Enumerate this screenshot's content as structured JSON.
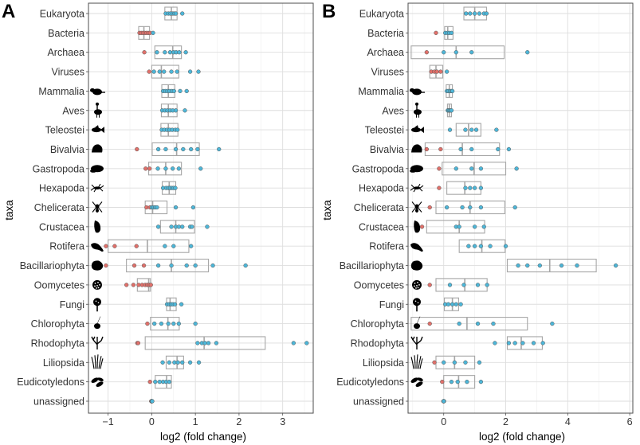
{
  "chart_data": [
    {
      "panel": "A",
      "type": "boxplot",
      "xlabel": "log2 (fold change)",
      "ylabel": "taxa",
      "xlim": [
        -1.45,
        3.7
      ],
      "xticks": [
        -1,
        0,
        1,
        2,
        3
      ],
      "xtick_labels": [
        "−1",
        "0",
        "1",
        "2",
        "3"
      ],
      "boxes": [
        {
          "taxon": "Eukaryota",
          "q1": 0.3,
          "median": 0.45,
          "q3": 0.58,
          "points": [
            0.32,
            0.38,
            0.43,
            0.48,
            0.52,
            0.55,
            0.7
          ]
        },
        {
          "taxon": "Bacteria",
          "q1": -0.3,
          "median": -0.18,
          "q3": -0.05,
          "points": [
            -0.28,
            -0.24,
            -0.2,
            -0.16,
            -0.12,
            -0.08,
            -0.04,
            0.03
          ]
        },
        {
          "taxon": "Archaea",
          "q1": 0.07,
          "median": 0.48,
          "q3": 0.68,
          "points": [
            -0.17,
            0.12,
            0.3,
            0.42,
            0.5,
            0.56,
            0.63,
            0.78
          ]
        },
        {
          "taxon": "Viruses",
          "q1": 0.0,
          "median": 0.22,
          "q3": 0.62,
          "points": [
            -0.06,
            0.05,
            0.18,
            0.28,
            0.45,
            0.58,
            0.88,
            1.07
          ]
        },
        {
          "taxon": "Mammalia",
          "q1": 0.23,
          "median": 0.38,
          "q3": 0.53,
          "points": [
            0.26,
            0.31,
            0.36,
            0.41,
            0.46,
            0.51,
            0.65,
            0.8
          ]
        },
        {
          "taxon": "Aves",
          "q1": 0.22,
          "median": 0.38,
          "q3": 0.58,
          "points": [
            0.24,
            0.3,
            0.36,
            0.42,
            0.48,
            0.55,
            0.76
          ]
        },
        {
          "taxon": "Teleostei",
          "q1": 0.21,
          "median": 0.38,
          "q3": 0.6,
          "points": [
            0.23,
            0.29,
            0.35,
            0.41,
            0.47,
            0.54,
            0.59
          ]
        },
        {
          "taxon": "Bivalvia",
          "q1": 0.01,
          "median": 0.57,
          "q3": 1.09,
          "points": [
            -0.34,
            0.15,
            0.32,
            0.55,
            0.72,
            0.9,
            1.05,
            1.54
          ]
        },
        {
          "taxon": "Gastropoda",
          "q1": -0.07,
          "median": 0.32,
          "q3": 0.68,
          "points": [
            -0.14,
            -0.05,
            0.14,
            0.32,
            0.48,
            0.62,
            1.12
          ]
        },
        {
          "taxon": "Hexapoda",
          "q1": 0.24,
          "median": 0.4,
          "q3": 0.55,
          "points": [
            0.26,
            0.33,
            0.38,
            0.42,
            0.46,
            0.5,
            0.54
          ]
        },
        {
          "taxon": "Chelicerata",
          "q1": -0.15,
          "median": 0.02,
          "q3": 0.35,
          "points": [
            -0.12,
            -0.04,
            0.0,
            0.04,
            0.08,
            0.12,
            0.55,
            0.95
          ]
        },
        {
          "taxon": "Crustacea",
          "q1": 0.2,
          "median": 0.55,
          "q3": 0.98,
          "points": [
            0.15,
            0.45,
            0.55,
            0.62,
            0.7,
            0.88,
            0.92,
            1.27
          ]
        },
        {
          "taxon": "Rotifera",
          "q1": -1.0,
          "median": -0.1,
          "q3": 0.85,
          "points": [
            -1.3,
            -1.05,
            -0.85,
            -0.35,
            0.3,
            0.5,
            0.9
          ]
        },
        {
          "taxon": "Bacillariophyta",
          "q1": -0.58,
          "median": 0.45,
          "q3": 1.3,
          "points": [
            -1.05,
            -0.4,
            -0.18,
            0.15,
            0.45,
            0.8,
            1.0,
            1.4,
            2.15
          ]
        },
        {
          "taxon": "Oomycetes",
          "q1": -0.33,
          "median": -0.07,
          "q3": -0.03,
          "points": [
            -0.58,
            -0.42,
            -0.3,
            -0.22,
            -0.15,
            -0.1,
            -0.06,
            -0.02
          ]
        },
        {
          "taxon": "Fungi",
          "q1": 0.34,
          "median": 0.42,
          "q3": 0.56,
          "points": [
            0.35,
            0.4,
            0.44,
            0.48,
            0.53,
            0.68
          ]
        },
        {
          "taxon": "Chlorophyta",
          "q1": -0.03,
          "median": 0.37,
          "q3": 0.63,
          "points": [
            -0.1,
            0.06,
            0.22,
            0.38,
            0.5,
            0.62,
            1.0
          ]
        },
        {
          "taxon": "Rhodophyta",
          "q1": -0.15,
          "median": 1.2,
          "q3": 2.6,
          "points": [
            -0.33,
            -0.31,
            1.05,
            1.15,
            1.22,
            1.3,
            1.48,
            3.25,
            3.55
          ]
        },
        {
          "taxon": "Liliopsida",
          "q1": 0.33,
          "median": 0.58,
          "q3": 0.73,
          "points": [
            0.25,
            0.4,
            0.52,
            0.6,
            0.7,
            0.88,
            1.08
          ]
        },
        {
          "taxon": "Eudicotyledons",
          "q1": 0.08,
          "median": 0.34,
          "q3": 0.45,
          "points": [
            -0.04,
            0.08,
            0.18,
            0.26,
            0.33,
            0.4
          ]
        },
        {
          "taxon": "unassigned",
          "q1": 0.0,
          "median": 0.0,
          "q3": 0.0,
          "points": [
            -0.01,
            0.0,
            0.0,
            0.01,
            0.0,
            0.0,
            -0.01,
            0.0,
            0.01
          ]
        }
      ]
    },
    {
      "panel": "B",
      "type": "boxplot",
      "xlabel": "log2 (fold change)",
      "ylabel": "taxa",
      "xlim": [
        -1.15,
        6.1
      ],
      "xticks": [
        0,
        2,
        4,
        6
      ],
      "xtick_labels": [
        "0",
        "2",
        "4",
        "6"
      ],
      "boxes": [
        {
          "taxon": "Eukaryota",
          "q1": 0.65,
          "median": 1.0,
          "q3": 1.38,
          "points": [
            0.72,
            0.85,
            1.0,
            1.15,
            1.3,
            1.38
          ]
        },
        {
          "taxon": "Bacteria",
          "q1": 0.03,
          "median": 0.13,
          "q3": 0.3,
          "points": [
            -0.25,
            0.05,
            0.12,
            0.18,
            0.25
          ]
        },
        {
          "taxon": "Archaea",
          "q1": -1.05,
          "median": 0.4,
          "q3": 1.95,
          "points": [
            -0.55,
            0.0,
            0.4,
            0.9,
            2.7
          ]
        },
        {
          "taxon": "Viruses",
          "q1": -0.45,
          "median": -0.25,
          "q3": -0.03,
          "points": [
            -0.4,
            -0.3,
            -0.22,
            -0.1,
            0.1
          ]
        },
        {
          "taxon": "Mammalia",
          "q1": 0.08,
          "median": 0.18,
          "q3": 0.28,
          "points": [
            0.1,
            0.15,
            0.2,
            0.25,
            0.28
          ]
        },
        {
          "taxon": "Aves",
          "q1": 0.12,
          "median": 0.18,
          "q3": 0.25,
          "points": [
            0.13,
            0.16,
            0.19,
            0.22,
            0.25
          ]
        },
        {
          "taxon": "Teleostei",
          "q1": 0.4,
          "median": 0.8,
          "q3": 1.2,
          "points": [
            0.2,
            0.7,
            0.9,
            1.05,
            1.7
          ]
        },
        {
          "taxon": "Bivalvia",
          "q1": -0.6,
          "median": 0.6,
          "q3": 1.8,
          "points": [
            -0.55,
            -0.1,
            0.55,
            0.9,
            1.75,
            2.1
          ]
        },
        {
          "taxon": "Gastropoda",
          "q1": -0.05,
          "median": 0.98,
          "q3": 2.0,
          "points": [
            -0.15,
            0.4,
            0.9,
            1.2,
            2.35
          ]
        },
        {
          "taxon": "Hexapoda",
          "q1": 0.1,
          "median": 0.68,
          "q3": 1.2,
          "points": [
            -0.15,
            0.7,
            0.85,
            1.0,
            1.2
          ]
        },
        {
          "taxon": "Chelicerata",
          "q1": -0.25,
          "median": 0.85,
          "q3": 1.97,
          "points": [
            -0.45,
            0.1,
            0.6,
            0.85,
            1.2,
            2.3
          ]
        },
        {
          "taxon": "Crustacea",
          "q1": -0.55,
          "median": 0.5,
          "q3": 1.32,
          "points": [
            -0.7,
            0.4,
            0.5,
            1.0,
            1.3
          ]
        },
        {
          "taxon": "Rotifera",
          "q1": 0.5,
          "median": 1.23,
          "q3": 1.98,
          "points": [
            0.8,
            1.0,
            1.2,
            1.5,
            2.0
          ]
        },
        {
          "taxon": "Bacillariophyta",
          "q1": 2.05,
          "median": 3.42,
          "q3": 4.92,
          "points": [
            2.4,
            2.7,
            3.1,
            3.8,
            4.3,
            5.55
          ]
        },
        {
          "taxon": "Oomycetes",
          "q1": -0.25,
          "median": 0.68,
          "q3": 1.4,
          "points": [
            -0.45,
            0.2,
            0.65,
            1.1,
            1.4
          ]
        },
        {
          "taxon": "Fungi",
          "q1": 0.02,
          "median": 0.28,
          "q3": 0.48,
          "points": [
            0.05,
            0.15,
            0.28,
            0.4,
            0.55
          ]
        },
        {
          "taxon": "Chlorophyta",
          "q1": -1.05,
          "median": 0.75,
          "q3": 2.7,
          "points": [
            -0.45,
            0.5,
            1.1,
            1.6,
            3.5
          ]
        },
        {
          "taxon": "Rhodophyta",
          "q1": 2.05,
          "median": 2.5,
          "q3": 3.18,
          "points": [
            1.65,
            2.1,
            2.3,
            2.55,
            2.9,
            3.2
          ]
        },
        {
          "taxon": "Liliopsida",
          "q1": -0.25,
          "median": 0.35,
          "q3": 1.0,
          "points": [
            -0.3,
            0.0,
            0.35,
            0.7,
            1.15
          ]
        },
        {
          "taxon": "Eudicotyledons",
          "q1": 0.0,
          "median": 0.48,
          "q3": 1.0,
          "points": [
            -0.05,
            0.25,
            0.45,
            0.75,
            1.2
          ]
        },
        {
          "taxon": "unassigned",
          "q1": 0.0,
          "median": 0.0,
          "q3": 0.0,
          "points": [
            -0.01,
            0.0,
            0.0,
            0.01,
            0.0
          ]
        }
      ]
    }
  ],
  "colors": {
    "negative_point": "#e0706a",
    "positive_point": "#4db6d8",
    "box_stroke": "#a6a6a6",
    "grid_major": "#dedede",
    "grid_minor": "#eeeeee",
    "panel_border": "#4d4d4d",
    "silhouette": "#000000",
    "text": "#333333"
  }
}
